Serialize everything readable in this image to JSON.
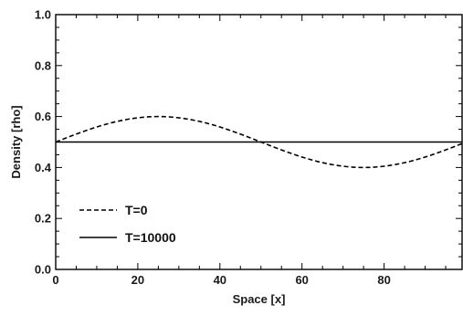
{
  "chart_data": {
    "type": "line",
    "title": "",
    "xlabel": "Space [x]",
    "ylabel": "Density [rho]",
    "xlim": [
      0,
      99
    ],
    "ylim": [
      0,
      1.0
    ],
    "x_ticks": [
      0,
      20,
      40,
      60,
      80
    ],
    "x_tick_labels": [
      "0",
      "20",
      "40",
      "60",
      "80"
    ],
    "y_ticks": [
      0,
      0.2,
      0.4,
      0.6,
      0.8,
      1.0
    ],
    "y_tick_labels": [
      "0.0",
      "0.2",
      "0.4",
      "0.6",
      "0.8",
      "1.0"
    ],
    "grid": false,
    "legend_position": "bottom-left",
    "series": [
      {
        "name": "T=0",
        "style": "dashed",
        "color": "#000000",
        "x": [
          0,
          5,
          10,
          15,
          20,
          25,
          30,
          35,
          40,
          45,
          50,
          55,
          60,
          65,
          70,
          75,
          80,
          85,
          90,
          95,
          99
        ],
        "y": [
          0.5,
          0.531,
          0.559,
          0.581,
          0.595,
          0.6,
          0.595,
          0.581,
          0.559,
          0.531,
          0.5,
          0.469,
          0.441,
          0.419,
          0.405,
          0.4,
          0.405,
          0.419,
          0.441,
          0.469,
          0.494
        ]
      },
      {
        "name": "T=10000",
        "style": "solid",
        "color": "#000000",
        "x": [
          0,
          99
        ],
        "y": [
          0.5,
          0.5
        ]
      }
    ]
  }
}
